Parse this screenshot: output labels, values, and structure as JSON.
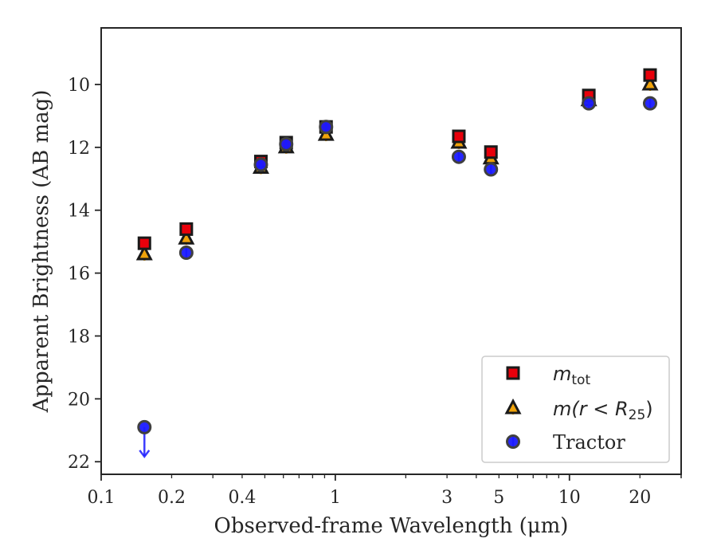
{
  "chart_data": {
    "type": "scatter",
    "xlabel": "Observed-frame Wavelength (μm)",
    "ylabel": "Apparent Brightness (AB mag)",
    "x_scale": "log",
    "xlim": [
      0.1,
      30
    ],
    "ylim": [
      22.4,
      8.2
    ],
    "y_inverted": true,
    "x_ticks": [
      {
        "value": 0.1,
        "label": "0.1"
      },
      {
        "value": 0.2,
        "label": "0.2"
      },
      {
        "value": 0.4,
        "label": "0.4"
      },
      {
        "value": 1,
        "label": "1"
      },
      {
        "value": 3,
        "label": "3"
      },
      {
        "value": 5,
        "label": "5"
      },
      {
        "value": 10,
        "label": "10"
      },
      {
        "value": 20,
        "label": "20"
      }
    ],
    "y_ticks": [
      {
        "value": 10,
        "label": "10"
      },
      {
        "value": 12,
        "label": "12"
      },
      {
        "value": 14,
        "label": "14"
      },
      {
        "value": 16,
        "label": "16"
      },
      {
        "value": 18,
        "label": "18"
      },
      {
        "value": 20,
        "label": "20"
      },
      {
        "value": 22,
        "label": "22"
      }
    ],
    "grid": false,
    "legend_position": "bottom-right",
    "series": [
      {
        "name": "m_tot",
        "label_main": "m",
        "label_sub": "tot",
        "marker": "square",
        "color": "#e8000b",
        "edge_color": "#1a1a1a",
        "x": [
          0.153,
          0.231,
          0.481,
          0.617,
          0.913,
          3.37,
          4.62,
          12.1,
          22.1
        ],
        "y": [
          15.05,
          14.6,
          12.45,
          11.85,
          11.35,
          11.65,
          12.15,
          10.35,
          9.7
        ]
      },
      {
        "name": "m(r<R25)",
        "label_main": "m(r < R",
        "label_sub": "25",
        "label_tail": ")",
        "marker": "triangle",
        "color": "#f0a30a",
        "edge_color": "#1a1a1a",
        "x": [
          0.153,
          0.231,
          0.481,
          0.617,
          0.913,
          3.37,
          4.62,
          12.1,
          22.1
        ],
        "y": [
          15.4,
          14.9,
          12.65,
          12.0,
          11.6,
          11.85,
          12.35,
          10.5,
          10.0
        ]
      },
      {
        "name": "Tractor",
        "label_main": "Tractor",
        "marker": "circle",
        "color": "#1a1aff",
        "edge_color": "#404040",
        "x": [
          0.153,
          0.231,
          0.481,
          0.617,
          0.913,
          3.37,
          4.62,
          12.1,
          22.1
        ],
        "y": [
          20.9,
          15.35,
          12.55,
          11.9,
          11.35,
          12.3,
          12.7,
          10.6,
          10.6
        ],
        "upper_limit": [
          true,
          false,
          false,
          false,
          false,
          false,
          false,
          false,
          false
        ]
      }
    ]
  }
}
